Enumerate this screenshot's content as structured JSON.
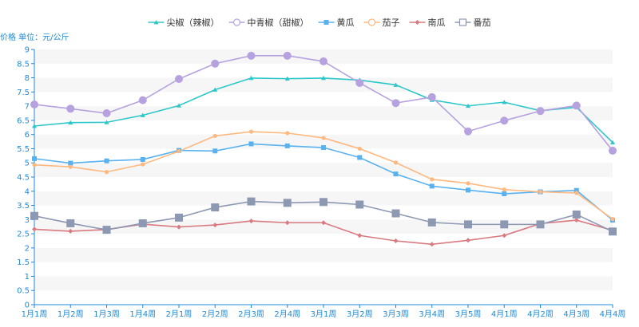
{
  "chart_data": {
    "type": "line",
    "ylabel": "价格 单位：元/公斤",
    "ylim": [
      0,
      9
    ],
    "y_ticks": [
      "0",
      "0.5",
      "1",
      "1.5",
      "2",
      "2.5",
      "3",
      "3.5",
      "4",
      "4.5",
      "5",
      "5.5",
      "6",
      "6.5",
      "7",
      "7.5",
      "8",
      "8.5",
      "9"
    ],
    "categories": [
      "1月1周",
      "1月2周",
      "1月3周",
      "1月4周",
      "2月1周",
      "2月2周",
      "2月3周",
      "2月4周",
      "3月1周",
      "3月2周",
      "3月3周",
      "3月4周",
      "3月5周",
      "4月1周",
      "4月2周",
      "4月3周",
      "4月4周"
    ],
    "grid": "horizontal alternating bands",
    "legend_position": "top-center",
    "series": [
      {
        "name": "尖椒（辣椒）",
        "color": "#2ec7c9",
        "marker": "triangle",
        "values": [
          6.3,
          6.42,
          6.43,
          6.68,
          7.02,
          7.58,
          7.99,
          7.97,
          7.99,
          7.92,
          7.75,
          7.22,
          7.01,
          7.14,
          6.84,
          6.96,
          5.72
        ]
      },
      {
        "name": "中青椒（甜椒）",
        "color": "#b6a2de",
        "marker": "circle",
        "values": [
          7.06,
          6.91,
          6.75,
          7.21,
          7.96,
          8.5,
          8.78,
          8.78,
          8.58,
          7.82,
          7.11,
          7.32,
          6.11,
          6.49,
          6.83,
          7.02,
          5.43
        ]
      },
      {
        "name": "黄瓜",
        "color": "#5ab1ef",
        "marker": "square",
        "values": [
          5.15,
          4.99,
          5.07,
          5.12,
          5.44,
          5.42,
          5.67,
          5.6,
          5.54,
          5.19,
          4.61,
          4.18,
          4.04,
          3.91,
          3.98,
          4.03,
          2.98
        ]
      },
      {
        "name": "茄子",
        "color": "#ffb980",
        "marker": "circle",
        "values": [
          4.93,
          4.86,
          4.68,
          4.95,
          5.41,
          5.95,
          6.1,
          6.05,
          5.88,
          5.5,
          5.01,
          4.42,
          4.28,
          4.06,
          3.98,
          3.94,
          3.02
        ]
      },
      {
        "name": "南瓜",
        "color": "#d87a80",
        "marker": "diamond",
        "values": [
          2.66,
          2.59,
          2.65,
          2.84,
          2.74,
          2.81,
          2.95,
          2.89,
          2.89,
          2.44,
          2.25,
          2.13,
          2.27,
          2.44,
          2.86,
          2.98,
          2.62
        ]
      },
      {
        "name": "番茄",
        "color": "#8d98b3",
        "marker": "emptySquare",
        "values": [
          3.13,
          2.87,
          2.64,
          2.87,
          3.07,
          3.43,
          3.64,
          3.59,
          3.62,
          3.53,
          3.22,
          2.9,
          2.83,
          2.83,
          2.83,
          3.18,
          2.58
        ]
      }
    ]
  }
}
